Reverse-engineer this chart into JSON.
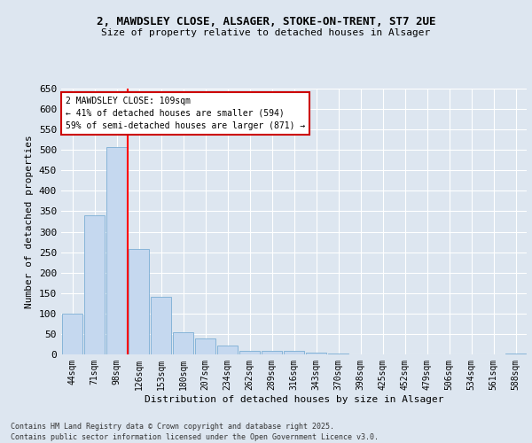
{
  "title_line1": "2, MAWDSLEY CLOSE, ALSAGER, STOKE-ON-TRENT, ST7 2UE",
  "title_line2": "Size of property relative to detached houses in Alsager",
  "categories": [
    "44sqm",
    "71sqm",
    "98sqm",
    "126sqm",
    "153sqm",
    "180sqm",
    "207sqm",
    "234sqm",
    "262sqm",
    "289sqm",
    "316sqm",
    "343sqm",
    "370sqm",
    "398sqm",
    "425sqm",
    "452sqm",
    "479sqm",
    "506sqm",
    "534sqm",
    "561sqm",
    "588sqm"
  ],
  "values": [
    100,
    340,
    507,
    257,
    140,
    55,
    38,
    22,
    9,
    9,
    9,
    5,
    3,
    1,
    1,
    1,
    0,
    0,
    0,
    0,
    3
  ],
  "bar_color": "#c5d8ef",
  "bar_edge_color": "#7badd4",
  "red_line_index": 2,
  "ylabel": "Number of detached properties",
  "xlabel": "Distribution of detached houses by size in Alsager",
  "ylim": [
    0,
    650
  ],
  "yticks": [
    0,
    50,
    100,
    150,
    200,
    250,
    300,
    350,
    400,
    450,
    500,
    550,
    600,
    650
  ],
  "annotation_title": "2 MAWDSLEY CLOSE: 109sqm",
  "annotation_line1": "← 41% of detached houses are smaller (594)",
  "annotation_line2": "59% of semi-detached houses are larger (871) →",
  "annotation_box_facecolor": "#ffffff",
  "annotation_box_edgecolor": "#cc0000",
  "footer_line1": "Contains HM Land Registry data © Crown copyright and database right 2025.",
  "footer_line2": "Contains public sector information licensed under the Open Government Licence v3.0.",
  "background_color": "#dde6f0",
  "plot_background_color": "#dde6f0",
  "grid_color": "#ffffff",
  "title1_fontsize": 9,
  "title2_fontsize": 8,
  "ylabel_fontsize": 8,
  "xlabel_fontsize": 8,
  "ytick_fontsize": 8,
  "xtick_fontsize": 7,
  "footer_fontsize": 6,
  "annotation_fontsize": 7
}
